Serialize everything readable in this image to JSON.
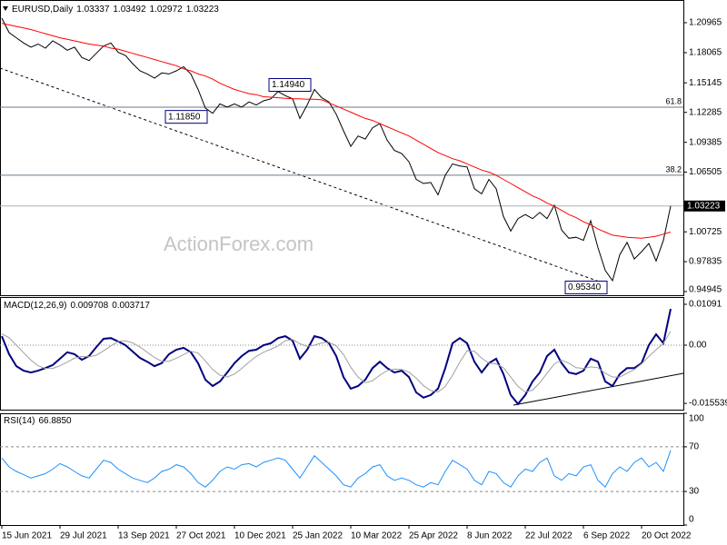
{
  "chart_data": [
    {
      "type": "line",
      "title": "EURUSD,Daily",
      "header_values": [
        1.03337,
        1.03492,
        1.02972,
        1.03223
      ],
      "categories": [
        "15 Jun 2021",
        null,
        null,
        null,
        null,
        null,
        null,
        null,
        "29 Jul 2021",
        null,
        null,
        null,
        null,
        null,
        null,
        null,
        "13 Sep 2021",
        null,
        null,
        null,
        null,
        null,
        null,
        null,
        "27 Oct 2021",
        null,
        null,
        null,
        null,
        null,
        null,
        null,
        "10 Dec 2021",
        null,
        null,
        null,
        null,
        null,
        null,
        null,
        "25 Jan 2022",
        null,
        null,
        null,
        null,
        null,
        null,
        null,
        "10 Mar 2022",
        null,
        null,
        null,
        null,
        null,
        null,
        null,
        "25 Apr 2022",
        null,
        null,
        null,
        null,
        null,
        null,
        null,
        "8 Jun 2022",
        null,
        null,
        null,
        null,
        null,
        null,
        null,
        "22 Jul 2022",
        null,
        null,
        null,
        null,
        null,
        null,
        null,
        "6 Sep 2022",
        null,
        null,
        null,
        null,
        null,
        null,
        null,
        "20 Oct 2022",
        null,
        null,
        null,
        null
      ],
      "series": [
        {
          "color": "#000000",
          "values": [
            1.214,
            1.2,
            1.195,
            1.19,
            1.186,
            1.189,
            1.185,
            1.192,
            1.188,
            1.183,
            1.186,
            1.176,
            1.173,
            1.18,
            1.187,
            1.19,
            1.181,
            1.178,
            1.17,
            1.163,
            1.16,
            1.156,
            1.161,
            1.16,
            1.163,
            1.167,
            1.16,
            1.145,
            1.127,
            1.122,
            1.131,
            1.128,
            1.131,
            1.128,
            1.133,
            1.13,
            1.134,
            1.136,
            1.143,
            1.139,
            1.136,
            1.117,
            1.13,
            1.145,
            1.137,
            1.133,
            1.121,
            1.105,
            1.09,
            1.1,
            1.097,
            1.108,
            1.112,
            1.096,
            1.086,
            1.083,
            1.075,
            1.058,
            1.054,
            1.055,
            1.043,
            1.062,
            1.073,
            1.071,
            1.07,
            1.049,
            1.044,
            1.058,
            1.049,
            1.022,
            1.008,
            1.02,
            1.024,
            1.02,
            1.026,
            1.02,
            1.033,
            1.009,
            1.001,
            1.002,
            0.999,
            1.018,
            0.992,
            0.97,
            0.96,
            0.985,
            0.997,
            0.981,
            0.988,
            0.996,
            0.979,
            0.999,
            1.03223
          ]
        },
        {
          "color": "#ff0000",
          "values": [
            1.209,
            1.2075,
            1.206,
            1.2045,
            1.203,
            1.201,
            1.199,
            1.197,
            1.195,
            1.1935,
            1.192,
            1.1905,
            1.189,
            1.188,
            1.187,
            1.185,
            1.184,
            1.182,
            1.18,
            1.178,
            1.176,
            1.174,
            1.172,
            1.17,
            1.168,
            1.165,
            1.163,
            1.16,
            1.158,
            1.155,
            1.151,
            1.148,
            1.145,
            1.143,
            1.141,
            1.14,
            1.138,
            1.1375,
            1.137,
            1.1365,
            1.136,
            1.136,
            1.1355,
            1.1355,
            1.135,
            1.132,
            1.129,
            1.126,
            1.123,
            1.12,
            1.117,
            1.115,
            1.112,
            1.109,
            1.106,
            1.103,
            1.1,
            1.096,
            1.092,
            1.088,
            1.084,
            1.081,
            1.078,
            1.076,
            1.073,
            1.07,
            1.067,
            1.065,
            1.062,
            1.058,
            1.054,
            1.05,
            1.046,
            1.042,
            1.039,
            1.035,
            1.032,
            1.028,
            1.024,
            1.021,
            1.017,
            1.014,
            1.01,
            1.007,
            1.004,
            1.003,
            1.002,
            1.0015,
            1.001,
            1.002,
            1.003,
            1.005,
            1.007
          ]
        }
      ],
      "ylim": [
        0.9459,
        1.2316
      ],
      "yticks": [
        1.20965,
        1.18065,
        1.15145,
        1.12285,
        1.09385,
        1.06505,
        1.00725,
        0.97835,
        0.94945
      ],
      "last_price": 1.03223,
      "levels": [
        {
          "value": 1.1279,
          "label": "61.8"
        },
        {
          "value": 1.062,
          "label": "38.2"
        }
      ],
      "annotations": [
        {
          "value": 1.1494,
          "label": "1.14940"
        },
        {
          "value": 1.1185,
          "label": "1.11850"
        },
        {
          "value": 0.9534,
          "label": "0.95340"
        }
      ]
    },
    {
      "type": "line",
      "title": "MACD(12,26,9)",
      "title_values": [
        0.009708,
        0.003717
      ],
      "series": [
        {
          "color": "#000080",
          "values": [
            0.0024,
            -0.0024,
            -0.0056,
            -0.0068,
            -0.0073,
            -0.0068,
            -0.0061,
            -0.0053,
            -0.0036,
            -0.0019,
            -0.0024,
            -0.0039,
            -0.0029,
            -0.0005,
            0.0017,
            0.0019,
            0.001,
            0.0,
            -0.0017,
            -0.0034,
            -0.0044,
            -0.0056,
            -0.0048,
            -0.0024,
            -0.0012,
            -0.0007,
            -0.0019,
            -0.0048,
            -0.0092,
            -0.0109,
            -0.0097,
            -0.0073,
            -0.0048,
            -0.0029,
            -0.0015,
            -0.0012,
            0.0,
            0.0005,
            0.0019,
            0.0024,
            0.0012,
            -0.0036,
            -0.0012,
            0.0024,
            0.0019,
            0.0005,
            -0.0029,
            -0.0085,
            -0.0116,
            -0.0109,
            -0.0092,
            -0.0061,
            -0.0044,
            -0.0061,
            -0.0073,
            -0.0068,
            -0.0085,
            -0.0126,
            -0.014,
            -0.0133,
            -0.0116,
            -0.0061,
            0.0005,
            0.0019,
            0.0005,
            -0.0044,
            -0.0073,
            -0.0048,
            -0.0036,
            -0.0077,
            -0.0133,
            -0.0157,
            -0.0133,
            -0.0097,
            -0.0073,
            -0.0029,
            -0.0012,
            -0.0048,
            -0.0073,
            -0.0077,
            -0.0068,
            -0.0036,
            -0.0044,
            -0.0097,
            -0.0109,
            -0.0077,
            -0.0061,
            -0.0061,
            -0.0048,
            0.0,
            0.0029,
            0.0005,
            0.0097
          ]
        },
        {
          "color": "#a0a0a0",
          "values": [
            0.003,
            0.002,
            0.0,
            -0.002,
            -0.004,
            -0.0055,
            -0.0062,
            -0.0062,
            -0.0055,
            -0.0045,
            -0.0035,
            -0.003,
            -0.0031,
            -0.0027,
            -0.0015,
            -0.0002,
            0.001,
            0.0012,
            0.0006,
            -0.0005,
            -0.0019,
            -0.0033,
            -0.0043,
            -0.0043,
            -0.0035,
            -0.0025,
            -0.0016,
            -0.0021,
            -0.0042,
            -0.0065,
            -0.008,
            -0.0085,
            -0.0077,
            -0.0062,
            -0.0045,
            -0.003,
            -0.0019,
            -0.0011,
            -0.0002,
            0.0012,
            0.0015,
            0.0004,
            -0.0003,
            0.0,
            0.0006,
            0.0008,
            -0.0002,
            -0.0025,
            -0.0059,
            -0.0085,
            -0.01,
            -0.0095,
            -0.008,
            -0.0068,
            -0.0064,
            -0.0065,
            -0.0072,
            -0.0088,
            -0.0108,
            -0.0121,
            -0.0125,
            -0.011,
            -0.008,
            -0.0045,
            -0.0015,
            -0.0016,
            -0.0035,
            -0.0048,
            -0.005,
            -0.006,
            -0.0085,
            -0.011,
            -0.0125,
            -0.012,
            -0.01,
            -0.0075,
            -0.005,
            -0.004,
            -0.0048,
            -0.006,
            -0.0062,
            -0.0058,
            -0.006,
            -0.0075,
            -0.0085,
            -0.0085,
            -0.0075,
            -0.0065,
            -0.005,
            -0.003,
            -0.0012,
            0.0005,
            0.0037
          ]
        }
      ],
      "ylim": [
        -0.01721,
        0.01285
      ],
      "yticks": [
        0.01091,
        {
          "value": 0,
          "label": "0.00"
        },
        -0.015539
      ],
      "zero_line": true
    },
    {
      "type": "line",
      "title": "RSI(14)",
      "title_values": [
        {
          "value": 66.885,
          "label": "66.8850"
        }
      ],
      "series": [
        {
          "color": "#1e90ff",
          "values": [
            60,
            52,
            48,
            45,
            42,
            44,
            46,
            50,
            55,
            52,
            48,
            44,
            42,
            50,
            58,
            56,
            50,
            46,
            42,
            40,
            38,
            42,
            48,
            50,
            54,
            52,
            46,
            38,
            34,
            40,
            48,
            52,
            50,
            54,
            55,
            52,
            56,
            58,
            60,
            58,
            50,
            42,
            52,
            62,
            56,
            50,
            44,
            36,
            34,
            42,
            46,
            52,
            54,
            44,
            40,
            42,
            40,
            36,
            34,
            38,
            36,
            48,
            58,
            54,
            50,
            40,
            36,
            48,
            46,
            38,
            34,
            44,
            50,
            48,
            56,
            60,
            44,
            40,
            46,
            44,
            52,
            54,
            40,
            34,
            46,
            52,
            48,
            56,
            60,
            52,
            56,
            48,
            66.885
          ]
        }
      ],
      "ylim": [
        0,
        100
      ],
      "yticks": [
        100,
        70,
        30,
        0
      ],
      "grid": true
    }
  ],
  "watermark": "ActionForex.com"
}
